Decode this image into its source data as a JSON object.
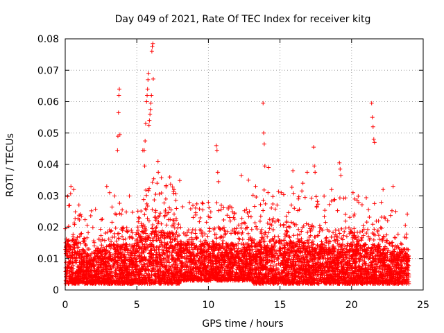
{
  "chart_data": {
    "type": "scatter",
    "title": "Day 049 of 2021, Rate Of TEC Index for receiver kitg",
    "xlabel": "GPS time / hours",
    "ylabel": "ROTI / TECUs",
    "xlim": [
      0,
      25
    ],
    "ylim": [
      0,
      0.08
    ],
    "xticks": [
      0,
      5,
      10,
      15,
      20,
      25
    ],
    "xtick_labels": [
      "0",
      "5",
      "10",
      "15",
      "20",
      "25"
    ],
    "yticks": [
      0,
      0.01,
      0.02,
      0.03,
      0.04,
      0.05,
      0.06,
      0.07,
      0.08
    ],
    "ytick_labels": [
      "0",
      "0.01",
      "0.02",
      "0.03",
      "0.04",
      "0.05",
      "0.06",
      "0.07",
      "0.08"
    ],
    "grid": true,
    "marker": "+",
    "color": "#ff0000",
    "series": [
      {
        "name": "ROTI",
        "x": [
          3.65,
          3.68,
          3.72,
          3.75,
          3.78,
          3.82,
          5.52,
          5.58,
          5.62,
          5.68,
          5.72,
          5.75,
          5.78,
          5.82,
          5.85,
          5.88,
          5.92,
          5.95,
          5.98,
          6.02,
          6.05,
          6.08,
          6.12,
          6.15,
          5.42,
          5.55,
          6.48,
          13.82,
          13.86,
          13.9,
          13.94,
          10.55,
          10.6,
          10.65,
          10.7,
          17.35,
          17.4,
          17.45,
          19.15,
          19.2,
          19.25,
          21.4,
          21.45,
          21.5,
          21.55,
          21.6,
          0.4,
          0.6,
          2.9,
          3.1,
          6.5,
          7.3,
          7.6,
          12.3,
          12.8,
          13.3,
          14.2,
          15.9,
          16.6,
          16.9,
          18.6,
          20.1,
          22.2,
          22.9
        ],
        "y": [
          0.0445,
          0.049,
          0.0565,
          0.062,
          0.064,
          0.0495,
          0.0445,
          0.0475,
          0.053,
          0.06,
          0.062,
          0.064,
          0.067,
          0.069,
          0.0525,
          0.054,
          0.056,
          0.0575,
          0.0595,
          0.062,
          0.076,
          0.0775,
          0.0785,
          0.0672,
          0.0445,
          0.0395,
          0.041,
          0.0595,
          0.05,
          0.0465,
          0.0395,
          0.046,
          0.0445,
          0.0375,
          0.0345,
          0.0455,
          0.0395,
          0.0375,
          0.0405,
          0.0385,
          0.0365,
          0.0595,
          0.055,
          0.052,
          0.048,
          0.047,
          0.033,
          0.032,
          0.033,
          0.031,
          0.0375,
          0.036,
          0.032,
          0.0365,
          0.035,
          0.033,
          0.039,
          0.038,
          0.034,
          0.0375,
          0.032,
          0.031,
          0.032,
          0.033
        ]
      }
    ],
    "background_density": [
      {
        "hours": [
          0,
          1
        ],
        "min": 0.002,
        "max": 0.022,
        "peak": 0.032
      },
      {
        "hours": [
          1,
          3
        ],
        "min": 0.002,
        "max": 0.018,
        "peak": 0.026
      },
      {
        "hours": [
          3,
          5
        ],
        "min": 0.002,
        "max": 0.02,
        "peak": 0.031
      },
      {
        "hours": [
          5,
          8
        ],
        "min": 0.002,
        "max": 0.026,
        "peak": 0.036
      },
      {
        "hours": [
          8,
          13
        ],
        "min": 0.003,
        "max": 0.02,
        "peak": 0.028
      },
      {
        "hours": [
          13,
          17
        ],
        "min": 0.002,
        "max": 0.022,
        "peak": 0.033
      },
      {
        "hours": [
          17,
          22
        ],
        "min": 0.002,
        "max": 0.02,
        "peak": 0.03
      },
      {
        "hours": [
          22,
          24
        ],
        "min": 0.002,
        "max": 0.018,
        "peak": 0.028
      }
    ]
  }
}
